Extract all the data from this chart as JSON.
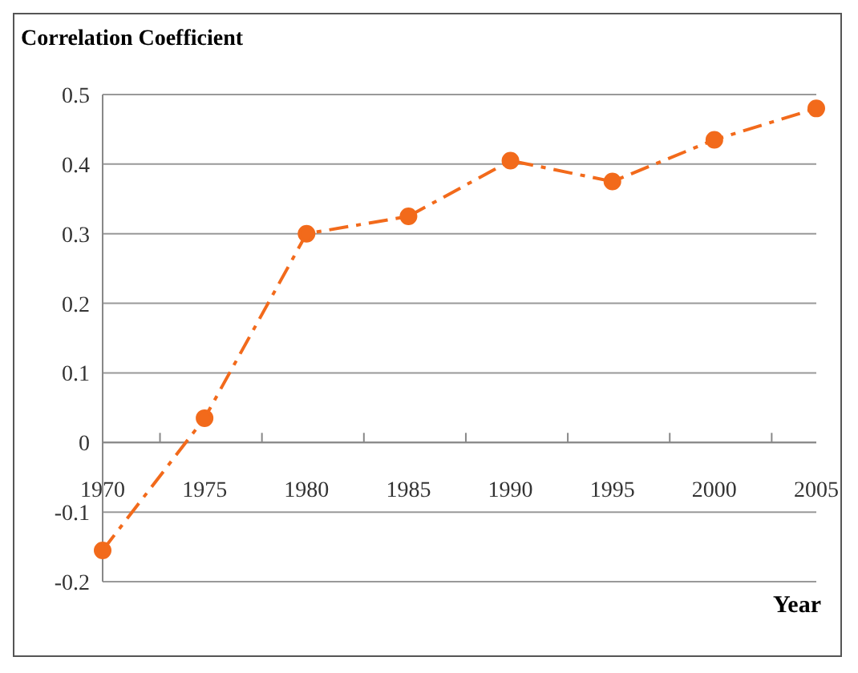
{
  "chart_data": {
    "type": "line",
    "ylabel": "Correlation Coefficient",
    "xlabel": "Year",
    "categories": [
      "1970",
      "1975",
      "1980",
      "1985",
      "1990",
      "1995",
      "2000",
      "2005"
    ],
    "series": [
      {
        "color": "#f26a1b",
        "values": [
          -0.155,
          0.035,
          0.3,
          0.325,
          0.405,
          0.375,
          0.435,
          0.48
        ]
      }
    ],
    "ylim": [
      -0.2,
      0.5
    ],
    "yticks": [
      -0.2,
      -0.1,
      0,
      0.1,
      0.2,
      0.3,
      0.4,
      0.5
    ],
    "grid": "y",
    "marker": "circle",
    "line_style": "dashdot"
  }
}
